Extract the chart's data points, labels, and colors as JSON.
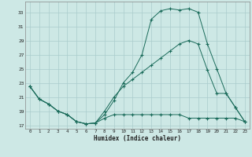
{
  "xlabel": "Humidex (Indice chaleur)",
  "ylabel": "",
  "background_color": "#cde8e5",
  "grid_color": "#aacccc",
  "line_color": "#1a6b5a",
  "xlim": [
    -0.5,
    23.5
  ],
  "ylim": [
    16.5,
    34.5
  ],
  "yticks": [
    17,
    19,
    21,
    23,
    25,
    27,
    29,
    31,
    33
  ],
  "xticks": [
    0,
    1,
    2,
    3,
    4,
    5,
    6,
    7,
    8,
    9,
    10,
    11,
    12,
    13,
    14,
    15,
    16,
    17,
    18,
    19,
    20,
    21,
    22,
    23
  ],
  "line1_x": [
    0,
    1,
    2,
    3,
    4,
    5,
    6,
    7,
    8,
    9,
    10,
    11,
    12,
    13,
    14,
    15,
    16,
    17,
    18,
    19,
    20,
    21,
    22,
    23
  ],
  "line1_y": [
    22.5,
    20.7,
    20.0,
    19.0,
    18.5,
    17.5,
    17.2,
    17.3,
    18.5,
    20.5,
    23.0,
    24.5,
    27.0,
    32.0,
    33.2,
    33.5,
    33.3,
    33.5,
    33.0,
    28.5,
    25.0,
    21.5,
    19.5,
    17.5
  ],
  "line2_x": [
    0,
    1,
    2,
    3,
    4,
    5,
    6,
    7,
    8,
    9,
    10,
    11,
    12,
    13,
    14,
    15,
    16,
    17,
    18,
    19,
    20,
    21,
    22,
    23
  ],
  "line2_y": [
    22.5,
    20.7,
    20.0,
    19.0,
    18.5,
    17.5,
    17.2,
    17.3,
    19.0,
    21.0,
    22.5,
    23.5,
    24.5,
    25.5,
    26.5,
    27.5,
    28.5,
    29.0,
    28.5,
    24.8,
    21.5,
    21.5,
    19.5,
    17.5
  ],
  "line3_x": [
    0,
    1,
    2,
    3,
    4,
    5,
    6,
    7,
    8,
    9,
    10,
    11,
    12,
    13,
    14,
    15,
    16,
    17,
    18,
    19,
    20,
    21,
    22,
    23
  ],
  "line3_y": [
    22.5,
    20.7,
    20.0,
    19.0,
    18.5,
    17.5,
    17.2,
    17.3,
    18.0,
    18.5,
    18.5,
    18.5,
    18.5,
    18.5,
    18.5,
    18.5,
    18.5,
    18.0,
    18.0,
    18.0,
    18.0,
    18.0,
    18.0,
    17.5
  ],
  "figsize": [
    3.2,
    2.0
  ],
  "dpi": 100
}
